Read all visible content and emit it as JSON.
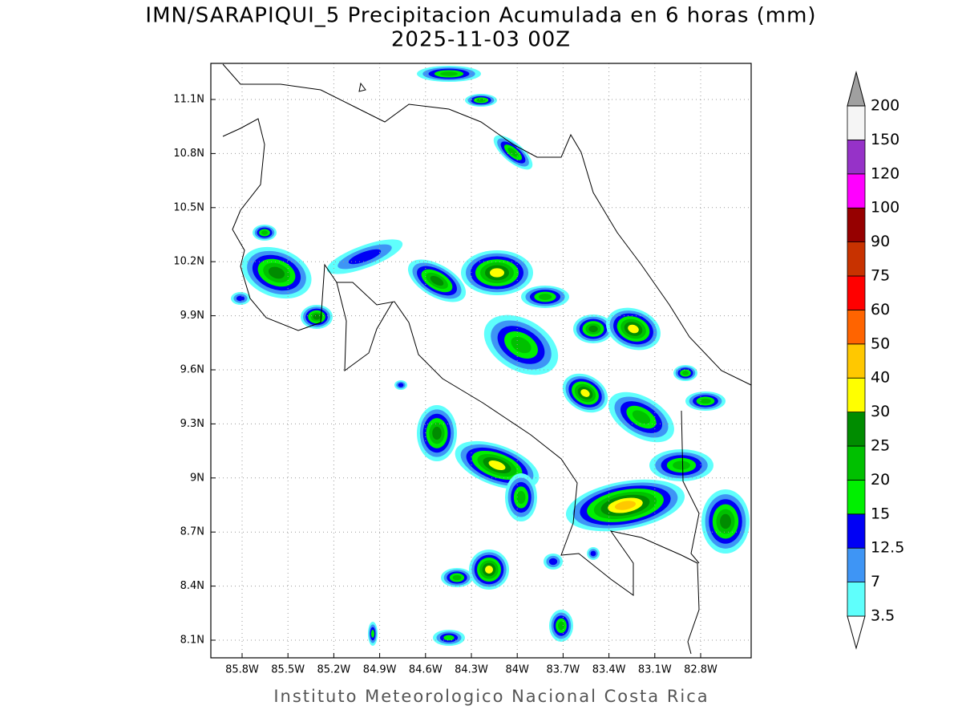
{
  "title": "IMN/SARAPIQUI_5 Precipitacion Acumulada en 6 horas (mm)",
  "subtitle": "2025-11-03 00Z",
  "map": {
    "x_tick_labels": [
      "85.8W",
      "85.5W",
      "85.2W",
      "84.9W",
      "84.6W",
      "84.3W",
      "84W",
      "83.7W",
      "83.4W",
      "83.1W",
      "82.8W"
    ],
    "y_tick_labels": [
      "11.1N",
      "10.8N",
      "10.5N",
      "10.2N",
      "9.9N",
      "9.6N",
      "9.3N",
      "9N",
      "8.7N",
      "8.4N",
      "8.1N"
    ]
  },
  "colorbar": {
    "levels": [
      3.5,
      7,
      12.5,
      15,
      20,
      25,
      30,
      40,
      50,
      60,
      75,
      90,
      100,
      120,
      150,
      200
    ],
    "colors": [
      "#ffffff",
      "#5ffffc",
      "#3e95f5",
      "#0000f5",
      "#00f000",
      "#00c000",
      "#008c00",
      "#ffff00",
      "#ffc800",
      "#ff6400",
      "#ff0000",
      "#c83200",
      "#960000",
      "#ff00ff",
      "#9632c8",
      "#f5f5f5",
      "#a0a0a0"
    ]
  },
  "footer": "Instituto Meteorologico Nacional Costa Rica"
}
